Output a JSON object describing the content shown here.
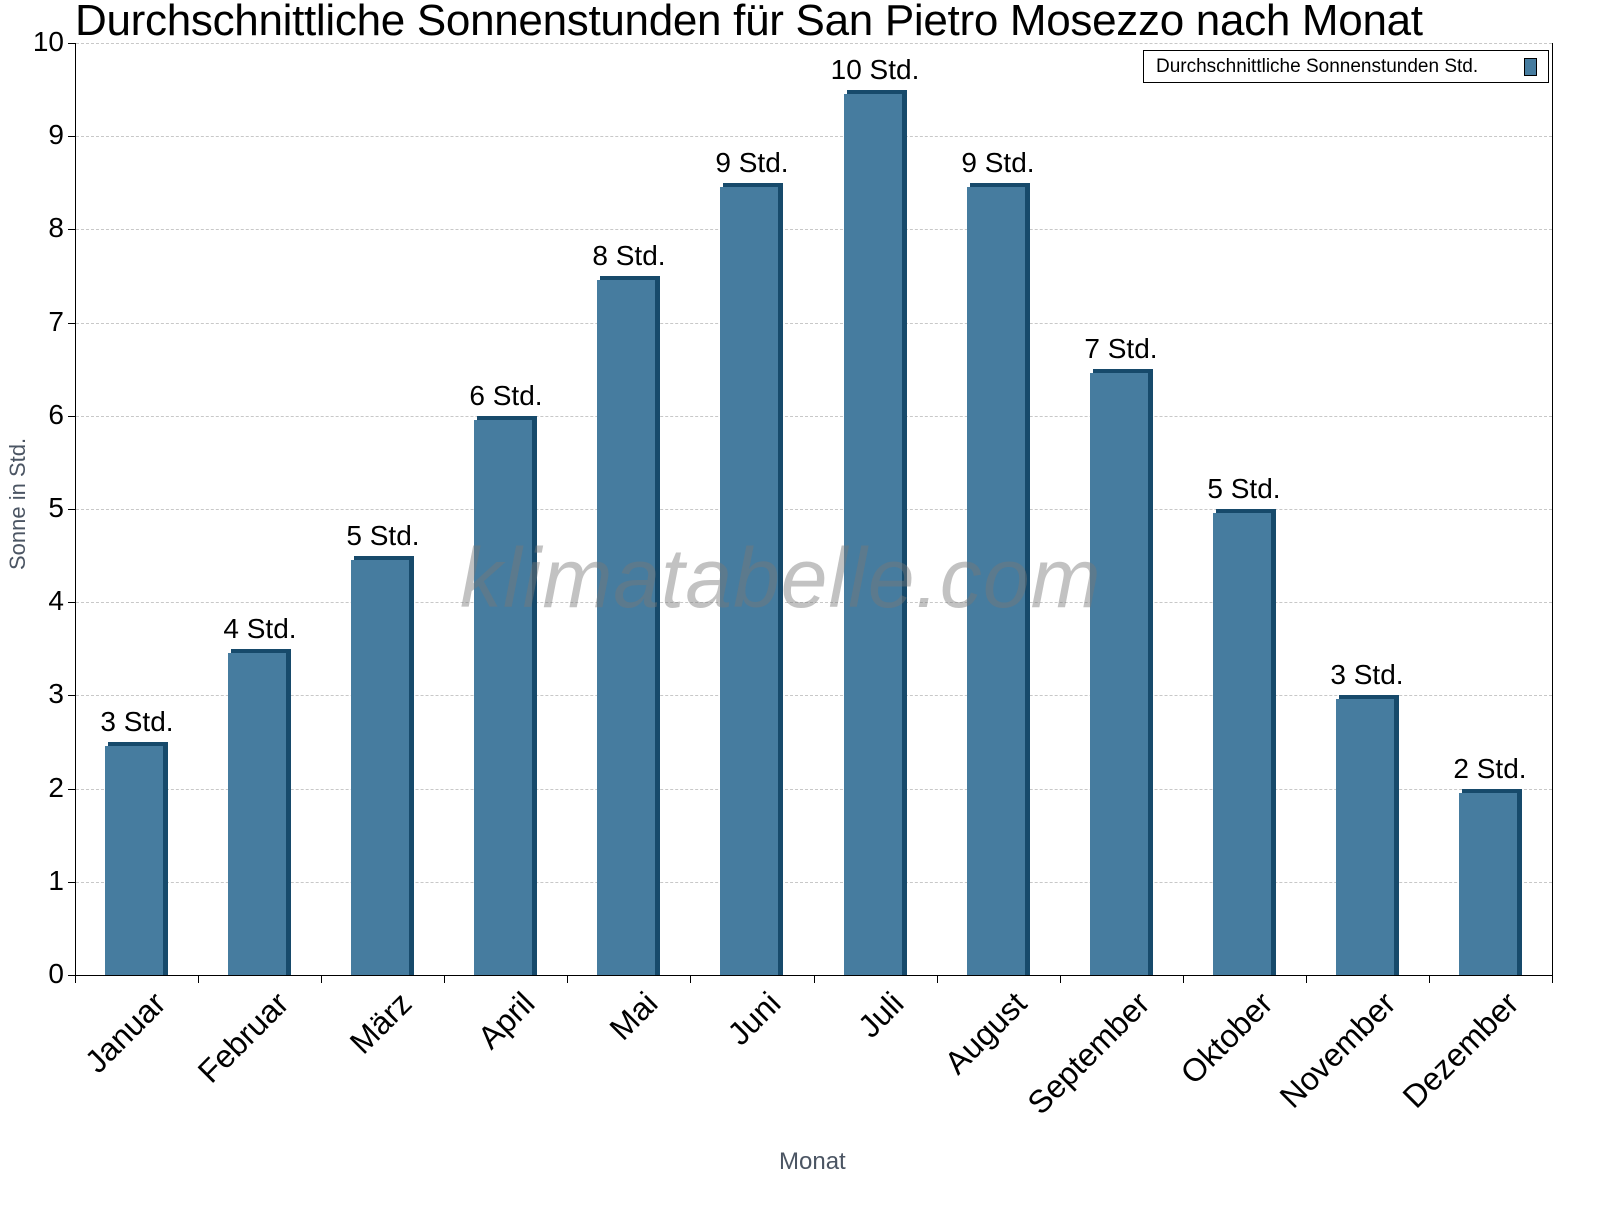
{
  "chart_data": {
    "type": "bar",
    "title": "Durchschnittliche Sonnenstunden für San Pietro Mosezzo nach Monat",
    "xlabel": "Monat",
    "ylabel": "Sonne in Std.",
    "ylim": [
      0,
      10
    ],
    "yticks": [
      "0",
      "1",
      "2",
      "3",
      "4",
      "5",
      "6",
      "7",
      "8",
      "9",
      "10"
    ],
    "grid": true,
    "legend_position": "top-right",
    "categories": [
      "Januar",
      "Februar",
      "März",
      "April",
      "Mai",
      "Juni",
      "Juli",
      "August",
      "September",
      "Oktober",
      "November",
      "Dezember"
    ],
    "series": [
      {
        "name": "Durchschnittliche Sonnenstunden Std.",
        "color": "#467c9f",
        "values": [
          2.5,
          3.5,
          4.5,
          6,
          7.5,
          8.5,
          9.5,
          8.5,
          6.5,
          5,
          3,
          2
        ],
        "data_labels": [
          "3 Std.",
          "4 Std.",
          "5 Std.",
          "6 Std.",
          "8 Std.",
          "9 Std.",
          "10 Std.",
          "9 Std.",
          "7 Std.",
          "5 Std.",
          "3 Std.",
          "2 Std."
        ]
      }
    ],
    "watermark": "klimatabelle.com"
  },
  "colors": {
    "bar": "#467c9f",
    "bar_shade": "#174a6b",
    "grid": "#c8c8c8",
    "axis_title": "#4b5563"
  }
}
